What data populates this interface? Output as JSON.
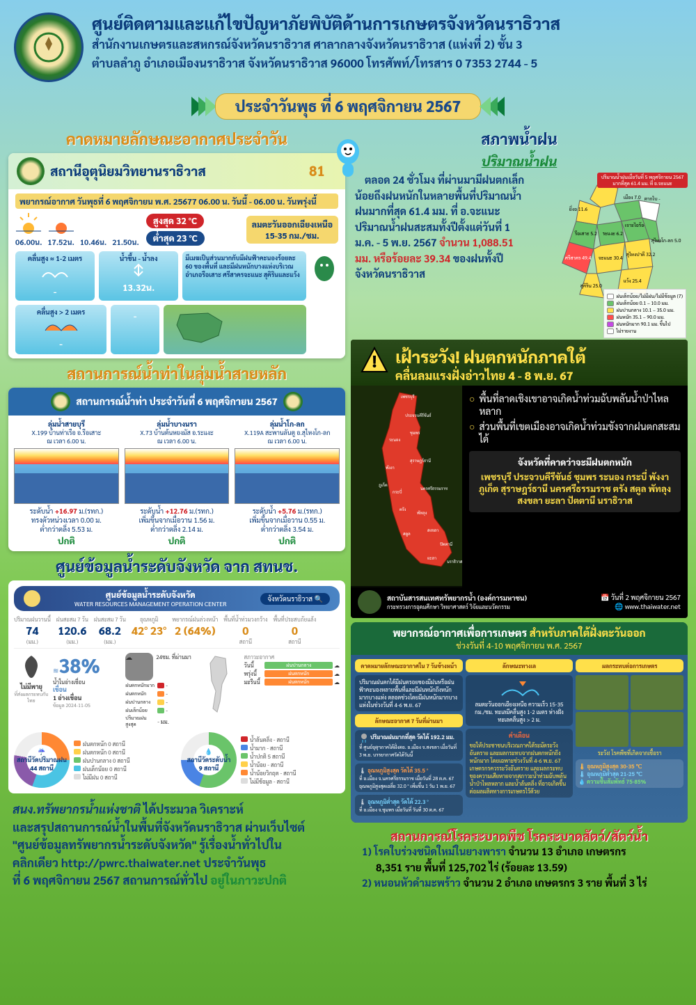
{
  "header": {
    "title": "ศูนย์ติดตามและแก้ไขปัญหาภัยพิบัติด้านการเกษตรจังหวัดนราธิวาส",
    "addr1": "สำนักงานเกษตรและสหกรณ์จังหวัดนราธิวาส ศาลากลางจังหวัดนราธิวาส (แห่งที่ 2) ชั้น 3",
    "addr2": "ตำบลลำภู อำเภอเมืองนราธิวาส จังหวัดนราธิวาส 96000 โทรศัพท์/โทรสาร 0 7353 2744 - 5"
  },
  "date_ribbon": "ประจำวันพุธ ที่ 6 พฤศจิกายน 2567",
  "left": {
    "forecast_title": "คาดหมายลักษณะอากาศประจำวัน",
    "station": "สถานีอุตุนิยมวิทยานราธิวาส",
    "forecast_sub": "พยากรณ์อากาศ วันพุธที่ 6  พฤศจิกายน พ.ศ. 25677 06.00 น. วันนี้ - 06.00 น. วันพรุ่งนี้",
    "sun": {
      "rise": "06.00น.",
      "set": "17.52น.",
      "moonrise": "10.46น.",
      "moonset": "21.50น."
    },
    "temp_hi": "สูงสุด 32 °C",
    "temp_lo": "ต่ำสุด 23 °C",
    "wind_dir": "ลมตะวันออกเฉียงเหนือ",
    "wind_spd": "15-35 กม./ชม.",
    "wave1_lbl": "คลื่นสูง ≈ 1-2 เมตร",
    "wave2_lbl": "คลื่นสูง > 2 เมตร",
    "tide_lbl": "น้ำขึ้น - น้ำลง",
    "tide_val": "13.32น.",
    "rain_desc": "มีเมฆเป็นส่วนมากกับมีฝนฟ้าคะนองร้อยละ 60 ของพื้นที่ และมีฝนหนักบางแห่งบริเวณอำเภอรือเสาะ  ศรีสาครจะแนะ สุคิรินและแว้ง",
    "water_title": "สถานการณ์น้ำท่าในลุ่มน้ำสายหลัก",
    "water_head": "สถานการณ์น้ำท่า ประจำวันที่  6 พฤศจิกายน 2567",
    "gauges": [
      {
        "basin": "ลุ่มน้ำสายบุรี",
        "station": "X.199 บ้านท่าเรือ อ.รือเสาะ",
        "time": "ณ เวลา 6.00 น.",
        "lvl": "ระดับน้ำ +16.97 ม.(รทก.)",
        "warn": "ทรงตัวหน่วงเวลา 0.00 ม.",
        "bank": "ต่ำกว่าตลิ่ง 5.53 ม.",
        "status": "ปกติ"
      },
      {
        "basin": "ลุ่มน้ำบางนรา",
        "station": "X.73 บ้านต้นหยงมัส อ.ระแงะ",
        "time": "ณ เวลา 6.00 น.",
        "lvl": "ระดับน้ำ +12.76 ม.(รทก.)",
        "warn": "เพิ่มขึ้นจากเมื่อวาน 1.56 ม.",
        "bank": "ต่ำกว่าตลิ่ง 2.14 ม.",
        "status": "ปกติ"
      },
      {
        "basin": "ลุ่มน้ำโก-ลก",
        "station": "X.119A สะพานลันตู อ.สุไหงโก-ลก",
        "time": "ณ เวลา 6.00 น.",
        "lvl": "ระดับน้ำ +5.76 ม.(รทก.)",
        "warn": "เพิ่มขึ้นจากเมื่อวาน 0.55 ม.",
        "bank": "ต่ำกว่าตลิ่ง 3.54 ม.",
        "status": "ปกติ"
      }
    ],
    "prov_title": "ศูนย์ข้อมูลน้ำระดับจังหวัด จาก สทนช.",
    "prov_center": "ศูนย์ข้อมูลน้ำระดับจังหวัด",
    "prov_center_en": "WATER RESOURCES MANAGEMENT OPERATION CENTER",
    "prov_search": "จังหวัดนราธิวาส 🔍",
    "prov_stats": [
      {
        "lbl": "ปริมาณฝนวานนี้",
        "v": "74",
        "u": "(มม.)"
      },
      {
        "lbl": "ฝนสะสม 7 วัน",
        "v": "120.6",
        "u": "(มม.)"
      },
      {
        "lbl": "ฝนสะสม 7 วัน",
        "v": "68.2",
        "u": "(มม.)"
      },
      {
        "lbl": "อุณหภูมิ",
        "v": "42° 23°",
        "u": ""
      },
      {
        "lbl": "พยากรณ์ฝนล่วงหน้า",
        "v": "2 (64%)",
        "u": ""
      },
      {
        "lbl": "พื้นที่น้ำท่วมวงกว้าง",
        "v": "0",
        "u": "สถานี"
      },
      {
        "lbl": "พื้นที่ประสบภัยแล้ง",
        "v": "0",
        "u": "สถานี"
      }
    ],
    "storm_lbl": "ไม่มีพายุ",
    "storm_sub": "ที่ส่งผลกระทบกับไทย",
    "pct": "38%",
    "pct_lbl": "น้ำในอ่างเขื่อน",
    "pct_sta": "เขื่อน",
    "pct_n": "1 อ่างเขื่อน",
    "pct_date": "ข้อมูล 2024-11-05",
    "rain24_lbl": "24ชม. ที่ผ่านมา",
    "rain_status": [
      {
        "lbl": "ฝนตกหนักมาก",
        "color": "#d0252a",
        "n": "-"
      },
      {
        "lbl": "ฝนตกหนัก",
        "color": "#ff8833",
        "n": "-"
      },
      {
        "lbl": "ฝนปานกลาง",
        "color": "#ffd04a",
        "n": "-"
      },
      {
        "lbl": "ฝนเล็กน้อย",
        "color": "#6ac46a",
        "n": "-"
      },
      {
        "lbl": "ปริมาณฝนสูงสุด",
        "color": "",
        "n": "- มม."
      }
    ],
    "fc_status": [
      {
        "lbl": "วันนี้",
        "bar": "#6ac46a",
        "txt": "ฝนปานกลาง"
      },
      {
        "lbl": "พรุ่งนี้",
        "bar": "#ff8833",
        "txt": "ฝนตกหนัก"
      },
      {
        "lbl": "มะรืนนี้",
        "bar": "#ff8833",
        "txt": "ฝนตกหนัก"
      }
    ],
    "donut1_lbl": "สถานีวัดปริมาณฝน",
    "donut1_n": "44 สถานี",
    "donut1_leg": [
      {
        "c": "#ff8833",
        "t": "ฝนตกหนัก 0 สถานี"
      },
      {
        "c": "#ffd04a",
        "t": "ฝนตกหนัก 0 สถานี"
      },
      {
        "c": "#6ac46a",
        "t": "ฝนปานกลาง 0 สถานี"
      },
      {
        "c": "#4ac4e4",
        "t": "ฝนเล็กน้อย 0 สถานี"
      },
      {
        "c": "#ddd",
        "t": "ไม่มีฝน 0 สถานี"
      }
    ],
    "donut2_lbl": "สถานีวัดระดับน้ำ",
    "donut2_n": "9 สถานี",
    "donut2_leg": [
      {
        "c": "#d0252a",
        "t": "น้ำล้นตลิ่ง - สถานี"
      },
      {
        "c": "#4a84e4",
        "t": "น้ำมาก - สถานี"
      },
      {
        "c": "#6ac46a",
        "t": "น้ำปกติ 5 สถานี"
      },
      {
        "c": "#ffd04a",
        "t": "น้ำน้อย - สถานี"
      },
      {
        "c": "#ff8833",
        "t": "น้ำน้อยวิกฤต - สถานี"
      },
      {
        "c": "#ddd",
        "t": "ไม่มีข้อมูล - สถานี"
      }
    ],
    "bottom": {
      "l1a": "สนง.ทรัพยากรน้ำแห่งชาติ",
      "l1b": "  ได้ประมวล วิเคราะห์",
      "l2": "และสรุปสถานการณ์น้ำในพื้นที่จังหวัดนราธิวาส ผ่านเว็บไซต์",
      "l3": "\"ศูนย์ข้อมูลทรัพยากรน้ำระดับจังหวัด\" รู้เรื่องน้ำทั่วไปใน",
      "l4": "คลิกเดียว http://pwrc.thaiwater.net ประจำวันพุธ",
      "l5a": "ที่ 6 พฤศจิกายน 2567 สถานการณ์ทั่วไป ",
      "l5b": "อยู่ในภาวะปกติ"
    }
  },
  "right": {
    "rain_title": "สภาพน้ำฝน",
    "rain_sub": "ปริมาณน้ำฝน",
    "map_caption": "ปริมาณน้ำฝนเมื่อวันที่ 5 พฤศจิกายน 2567 มากที่สุด 61.4 มม. ที่ อ.จะแนะ",
    "rain_body_parts": {
      "p1": "ตลอด 24 ชั่วโมง ที่ผ่านมามีฝนตกเล็กน้อยถึงฝนหนักในหลายพื้นที่ปริมาณน้ำฝนมากที่สุด 61.4 มม. ที่ อ.จะแนะ ปริมาณน้ำฝนสะสมทั้งปีตั้งแต่วันที่ 1 ม.ค. - 5 พ.ย. 2567 ",
      "p2": "จำนวน 1,088.51 มม. หรือร้อยละ 39.34",
      "p3": " ของฝนทั้งปีจังหวัดนราธิวาส"
    },
    "map_vals": {
      "bacho": "บาเจาะ 13.8",
      "yingo": "ยี่งอ 11.6",
      "rueso": "รือเสาะ 5.2",
      "mueang": "เมือง 7.0",
      "takbai": "ตากใบ -",
      "rangae": "ระแงะ 6.2",
      "chanae": "จะแนะ 30.4",
      "srisakhon": "ศรีสาคร 49.4",
      "sukhirin": "สุคิริน 25.0",
      "sungaipadee": "สุไหงปาดี 32.2",
      "sungaikolok": "สุไหงโก-ลก 5.0",
      "waeng": "แว้ง 25.4",
      "chohai": "เจาะไอร้อง 5.0"
    },
    "legend": [
      {
        "c": "#fff",
        "t": "ฝนเล็กน้อย/ไม่มีฝน/ไม่มีข้อมูล (7)"
      },
      {
        "c": "#6ac46a",
        "t": "ฝนเล็กน้อย 0.1 – 10.0 มม."
      },
      {
        "c": "#ffe04a",
        "t": "ฝนปานกลาง 10.1 – 35.0 มม."
      },
      {
        "c": "#ff4d4d",
        "t": "ฝนหนัก 35.1 – 90.0 มม."
      },
      {
        "c": "#c44ae4",
        "t": "ฝนหนักมาก 90.1 มม. ขึ้นไป"
      },
      {
        "c": "#fff",
        "t": "ไม่รายงาน"
      }
    ],
    "warn": {
      "title": "เฝ้าระวัง! ฝนตกหนักภาคใต้",
      "sub": "คลื่นลมแรงฝั่งอ่าวไทย 4 - 8 พ.ย. 67",
      "b1": "พื้นที่ลาดเชิงเขาอาจเกิดน้ำท่วมฉับพลันน้ำป่าไหลหลาก",
      "b2": "ส่วนพื้นที่เขตเมืองอาจเกิดน้ำท่วมขังจากฝนตกสะสมได้",
      "box_t": "จังหวัดที่คาดว่าจะมีฝนตกหนัก",
      "box_b": "เพชรบุรี ประจวบคีรีขันธ์ ชุมพร ระนอง กระบี่ พังงา ภูเก็ต สุราษฎร์ธานี นครศรีธรรมราช ตรัง สตูล พัทลุง สงขลา ยะลา ปัตตานี นราธิวาส",
      "foot_org": "สถาบันสารสนเทศทรัพยากรน้ำ (องค์การมหาชน)",
      "foot_min": "กระทรวงการอุดมศึกษา วิทยาศาสตร์ วิจัยและนวัตกรรม",
      "foot_date": "วันที่ 2 พฤศจิกายน 2567",
      "foot_url": "www.thaiwater.net",
      "labels": [
        "เพชรบุรี",
        "ประจวบคีรีขันธ์",
        "ชุมพร",
        "ระนอง",
        "สุราษฎร์ธานี",
        "พังงา",
        "ภูเก็ต",
        "กระบี่",
        "นครศรีธรรมราช",
        "ตรัง",
        "พัทลุง",
        "สตูล",
        "สงขลา",
        "ปัตตานี",
        "ยะลา",
        "นราธิวาส"
      ]
    },
    "agri": {
      "title_a": "พยากรณ์อากาศเพื่อการเกษตร ",
      "title_b": "สำหรับภาคใต้ฝั่งตะวันออก",
      "sub": "ช่วงวันที่ 4-10 พฤศจิกายน พ.ศ. 2567",
      "col1_h": "คาดหมายลักษณะอากาศใน 7 วันข้างหน้า",
      "col1_t": "ปริมาณฝนตกได้มีฝนตรอยของมีฝนหรือฝนฟ้าคะนองหลายพื้นที่และมีฝนหนักถึงหนักมากบางแห่ง ตลอดช่วงโดยมีฝนหนักมากบางแห่งในช่วงวันที่ 4-6 พ.ย. 67",
      "col1_sh": "ลักษณะอากาศ 7 วันที่ผ่านมา",
      "col1_rain": "ปริมาณฝนมากที่สุด วัดได้ 192.2 มม.",
      "col1_rain2": "ที่ ศูนย์อุตุฯภาคใต้ฝั่งตอ. อ.เมือง จ.สงขลา เมื่อวันที่ 3 พ.ย. บรรยากาศวัดได้วันนี้",
      "col1_hi": "อุณหภูมิสูงสุด วัดได้ 35.5 °",
      "col1_hi2": "ที่ อ.เมือง จ.นครศรีธรรมราช เมื่อวันที่ 28 ต.ค. 67 อุณหภูมิสูงสุดเฉลี่ย 32.0 ° เพิ่มขึ้น 1 วัน 1 พ.ย. 67",
      "col1_lo": "อุณหภูมิต่ำสุด วัดได้ 22.3 °",
      "col1_lo2": "ที่ อ.เมือง จ.ชุมพร เมื่อวันที่ วันที่ 30 ต.ค. 67",
      "col2_h": "ลักษณะทางเล",
      "col2_t": "ลมตะวันออกเฉียงเหนือ ความเร็ว 15-35 กม./ชม. ทะเลมีคลื่นสูง 1-2 เมตร ห่างฝั่งทะเลคลื่นสูง > 2 ม.",
      "col2_wh": "คำเตือน",
      "col2_wt": "ขอให้ประชาชนบริเวณภาคใต้ระมัดระวังอันตราย และผลกระทบจากฝนตกหนักถึงหนักมาก โดยเฉพาะช่วงวันที่ 4-6 พ.ย. 67 เกษตรกรควรระวังอันตราย และผลกระทบของความเสียหายจากสภาวะน้ำท่วมฉับพลัน น้ำป่าไหลหลาก และน้ำล้นตลิ่ง ที่อาจเกิดขึ้นต่อผลผลิตทางการเกษตรไว้ด้วย",
      "col3_h": "ผลกระทบต่อการเกษตร",
      "col3_t": "ระวัง! โรคพืชที่เกิดจากเชื้อรา",
      "temp_hi": "อุณหภูมิสูงสุด 30-35 ℃",
      "temp_lo": "อุณหภูมิต่ำสุด 21-25 ℃",
      "humid": "ความชื้นสัมพัทธ์ 75-85%"
    },
    "disease": {
      "title": "สถานการณ์โรคระบาดพืช โรคระบาดสัตว์/สัตว์น้ำ",
      "d1_a": "1) โรคใบร่วงชนิดใหม่ในยางพารา",
      "d1_b": " จำนวน 13 อำเภอ เกษตรกร",
      "d1_c": "8,351 ราย พื้นที่ 125,702 ไร่ (ร้อยละ 13.59)",
      "d2_a": "2) หนอนหัวดำมะพร้าว",
      "d2_b": " จำนวน 2 อำเภอ เกษตรกร 3 ราย พื้นที่ 3 ไร่"
    }
  }
}
